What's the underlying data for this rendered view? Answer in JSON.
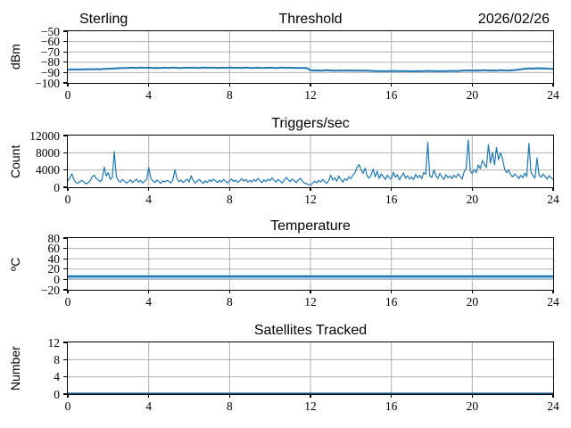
{
  "figure": {
    "background": "#ffffff",
    "grid_color": "#b0b0b0",
    "spine_color": "#000000",
    "accent_line_color": "#1f77b4"
  },
  "chart_data": [
    {
      "type": "line",
      "title": "Threshold",
      "title_left": "Sterling",
      "title_right": "2026/02/26",
      "ylabel": "dBm",
      "xlabel": "",
      "xlim": [
        0,
        24
      ],
      "ylim": [
        -100,
        -50
      ],
      "xticks": [
        0,
        4,
        8,
        12,
        16,
        20,
        24
      ],
      "yticks": [
        -100,
        -90,
        -80,
        -70,
        -60,
        -50
      ],
      "grid": true,
      "legend": "none",
      "series": [
        {
          "name": "threshold-dbm",
          "color": "#1f77b4",
          "width": 2,
          "x_start": 0,
          "x_step": 0.2,
          "values": [
            -87.2,
            -86.9,
            -87.1,
            -86.8,
            -87.0,
            -86.7,
            -86.9,
            -86.6,
            -86.8,
            -86.5,
            -86.3,
            -86.1,
            -85.9,
            -85.7,
            -85.5,
            -85.4,
            -85.3,
            -85.5,
            -85.2,
            -85.4,
            -85.3,
            -85.5,
            -85.4,
            -85.6,
            -85.3,
            -85.5,
            -85.2,
            -85.4,
            -85.6,
            -85.3,
            -85.4,
            -85.2,
            -85.5,
            -85.3,
            -85.1,
            -85.4,
            -85.2,
            -85.5,
            -85.3,
            -85.4,
            -85.2,
            -85.4,
            -85.3,
            -85.5,
            -85.2,
            -85.4,
            -85.6,
            -85.3,
            -85.5,
            -85.4,
            -85.3,
            -85.5,
            -85.4,
            -85.2,
            -85.4,
            -85.3,
            -85.5,
            -85.4,
            -85.6,
            -85.5,
            -87.8,
            -88.0,
            -87.9,
            -88.1,
            -87.8,
            -88.0,
            -88.2,
            -87.9,
            -88.1,
            -88.0,
            -87.9,
            -88.1,
            -88.0,
            -88.2,
            -88.1,
            -88.4,
            -88.6,
            -88.5,
            -88.7,
            -88.5,
            -88.6,
            -88.4,
            -88.7,
            -88.5,
            -88.6,
            -88.8,
            -88.5,
            -88.7,
            -88.6,
            -88.4,
            -88.6,
            -88.5,
            -88.7,
            -88.5,
            -88.6,
            -88.4,
            -88.5,
            -88.3,
            -88.0,
            -87.9,
            -88.1,
            -87.9,
            -88.0,
            -87.8,
            -88.0,
            -87.9,
            -88.1,
            -87.8,
            -87.9,
            -88.0,
            -87.8,
            -87.4,
            -86.8,
            -86.3,
            -85.9,
            -86.2,
            -85.8,
            -86.0,
            -85.9,
            -86.3,
            -86.5
          ]
        }
      ]
    },
    {
      "type": "line",
      "title": "Triggers/sec",
      "ylabel": "Count",
      "xlabel": "",
      "xlim": [
        0,
        24
      ],
      "ylim": [
        0,
        12000
      ],
      "xticks": [
        0,
        4,
        8,
        12,
        16,
        20,
        24
      ],
      "yticks": [
        0,
        4000,
        8000,
        12000
      ],
      "grid": true,
      "legend": "none",
      "series": [
        {
          "name": "triggers-per-sec",
          "color": "#1f77b4",
          "width": 1.2,
          "x_start": 0,
          "x_step": 0.1,
          "values": [
            1400,
            2200,
            3100,
            1800,
            1100,
            900,
            1300,
            1600,
            1200,
            800,
            1000,
            1500,
            2400,
            2800,
            2100,
            1700,
            1300,
            1900,
            4700,
            2600,
            3400,
            1800,
            2300,
            8300,
            2500,
            1500,
            1200,
            1800,
            1400,
            1000,
            1300,
            1700,
            1100,
            1500,
            1900,
            1200,
            1600,
            1000,
            1400,
            1800,
            4600,
            2200,
            1500,
            1100,
            1700,
            1300,
            900,
            1500,
            1200,
            1600,
            1400,
            1000,
            1800,
            4100,
            2000,
            1300,
            1700,
            1100,
            1500,
            1900,
            1200,
            2600,
            1600,
            1000,
            1400,
            1800,
            1300,
            900,
            1500,
            1100,
            1700,
            1300,
            1900,
            1500,
            1100,
            1600,
            1200,
            1800,
            1400,
            1000,
            1500,
            1900,
            1300,
            1700,
            1100,
            1500,
            2000,
            1400,
            1800,
            1200,
            1600,
            1200,
            1800,
            1400,
            2100,
            1500,
            1100,
            1700,
            1300,
            1900,
            1500,
            2200,
            1600,
            1200,
            1800,
            1400,
            1000,
            1600,
            2300,
            1700,
            1300,
            1900,
            1500,
            1100,
            1700,
            2100,
            1400,
            1000,
            800,
            600,
            500,
            900,
            1400,
            1000,
            1600,
            1200,
            1800,
            1300,
            900,
            1500,
            2800,
            1700,
            2200,
            1400,
            2600,
            1800,
            1200,
            2000,
            1600,
            2400,
            2000,
            2800,
            3400,
            4600,
            5300,
            4100,
            3200,
            4400,
            2600,
            2100,
            2900,
            4200,
            2400,
            3700,
            2000,
            3100,
            2500,
            1800,
            2800,
            2200,
            1900,
            3500,
            2300,
            2900,
            1700,
            2600,
            3300,
            2100,
            2700,
            1900,
            2400,
            1800,
            3000,
            2200,
            2800,
            2000,
            3400,
            3000,
            10500,
            2600,
            2300,
            4000,
            2700,
            2000,
            3200,
            2400,
            1800,
            2900,
            2200,
            2600,
            2000,
            2800,
            2300,
            3100,
            2500,
            1900,
            3600,
            4400,
            11000,
            3800,
            3200,
            4100,
            3400,
            5200,
            4300,
            6200,
            5400,
            4600,
            9900,
            5600,
            8100,
            5200,
            9200,
            6400,
            8000,
            6600,
            4200,
            3400,
            4000,
            2900,
            2400,
            3100,
            2600,
            2000,
            2800,
            2200,
            3300,
            2500,
            10200,
            3600,
            2700,
            2100,
            6800,
            2900,
            2300,
            3100,
            2500,
            1900,
            2700,
            2200,
            1800
          ]
        }
      ]
    },
    {
      "type": "line",
      "title": "Temperature",
      "ylabel": "ºC",
      "xlabel": "",
      "xlim": [
        0,
        24
      ],
      "ylim": [
        -20,
        80
      ],
      "xticks": [
        0,
        4,
        8,
        12,
        16,
        20,
        24
      ],
      "yticks": [
        -20,
        0,
        20,
        40,
        60,
        80
      ],
      "grid": true,
      "legend": "none",
      "series": [
        {
          "name": "temperature-band",
          "color": "#a9c7e2",
          "width": 3,
          "x_start": 0,
          "x_step": 12,
          "values": [
            3,
            3,
            3
          ]
        },
        {
          "name": "temperature",
          "color": "#1f77b4",
          "width": 2.3,
          "x_start": 0,
          "x_step": 12,
          "values": [
            6,
            6,
            6
          ]
        }
      ]
    },
    {
      "type": "line",
      "title": "Satellites Tracked",
      "ylabel": "Number",
      "xlabel": "",
      "xlim": [
        0,
        24
      ],
      "ylim": [
        0,
        12
      ],
      "xticks": [
        0,
        4,
        8,
        12,
        16,
        20,
        24
      ],
      "yticks": [
        0,
        4,
        8,
        12
      ],
      "grid": true,
      "legend": "none",
      "series": [
        {
          "name": "satellites-tracked",
          "color": "#16527f",
          "width": 2,
          "x_start": 0,
          "x_step": 12,
          "values": [
            0,
            0,
            0
          ]
        }
      ]
    }
  ]
}
